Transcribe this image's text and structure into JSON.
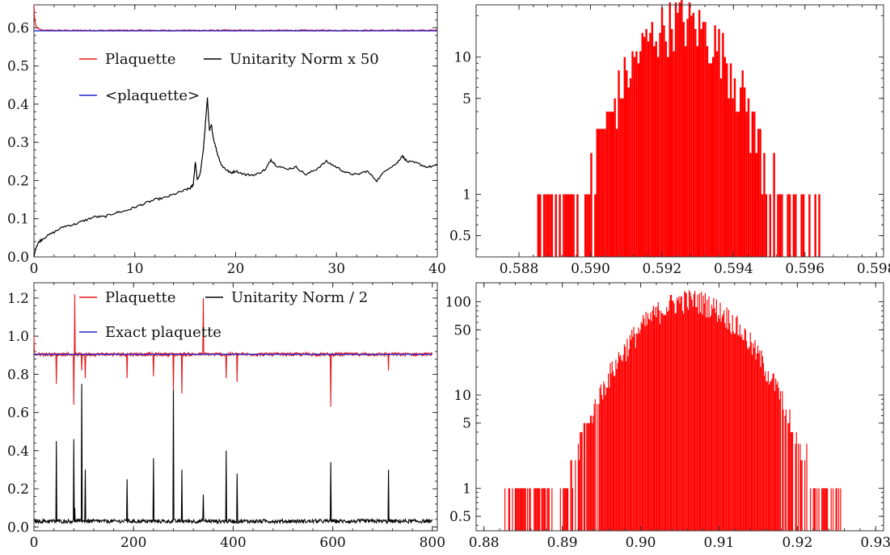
{
  "chart_data": [
    {
      "type": "line",
      "xlim": [
        0,
        40
      ],
      "ylim": [
        0,
        0.66
      ],
      "x_ticks": [
        "0",
        "10",
        "20",
        "30",
        "40"
      ],
      "x_tick_values": [
        0,
        10,
        20,
        30,
        40
      ],
      "y_ticks": [
        "0.0",
        "0.1",
        "0.2",
        "0.3",
        "0.4",
        "0.5",
        "0.6"
      ],
      "y_tick_values": [
        0,
        0.1,
        0.2,
        0.3,
        0.4,
        0.5,
        0.6
      ],
      "legend": [
        {
          "label": "Plaquette",
          "color": "#e8191b"
        },
        {
          "label": "Unitarity Norm x 50",
          "color": "#000000"
        },
        {
          "label": "<plaquette>",
          "color": "#2222cc"
        }
      ],
      "series": [
        {
          "name": "Plaquette",
          "color": "#e8191b",
          "x": [
            0,
            0.05,
            0.15,
            0.3,
            0.6,
            1.0,
            2,
            5,
            10,
            15,
            20,
            25,
            30,
            35,
            40
          ],
          "y": [
            0.66,
            0.63,
            0.61,
            0.6,
            0.596,
            0.594,
            0.593,
            0.593,
            0.592,
            0.593,
            0.592,
            0.593,
            0.592,
            0.593,
            0.592
          ]
        },
        {
          "name": "<plaquette>",
          "color": "#2222cc",
          "x": [
            0,
            40
          ],
          "y": [
            0.592,
            0.592
          ]
        },
        {
          "name": "Unitarity Norm x 50",
          "color": "#000000",
          "x": [
            0,
            0.2,
            0.5,
            1,
            2,
            3,
            4,
            5,
            6,
            7,
            8,
            9,
            10,
            11,
            12,
            13,
            14,
            15,
            15.5,
            15.8,
            16.0,
            16.2,
            16.5,
            16.8,
            17.0,
            17.2,
            17.4,
            17.6,
            17.8,
            18.2,
            18.6,
            19,
            19.5,
            20,
            21,
            22,
            23,
            23.5,
            24,
            25,
            26,
            27,
            28,
            29,
            30,
            31,
            32,
            33,
            34,
            35,
            36,
            36.5,
            37,
            38,
            39,
            40
          ],
          "y": [
            0.0,
            0.025,
            0.04,
            0.05,
            0.065,
            0.08,
            0.085,
            0.095,
            0.105,
            0.105,
            0.115,
            0.12,
            0.13,
            0.14,
            0.15,
            0.155,
            0.165,
            0.175,
            0.18,
            0.19,
            0.25,
            0.2,
            0.22,
            0.28,
            0.35,
            0.415,
            0.33,
            0.345,
            0.31,
            0.27,
            0.24,
            0.23,
            0.22,
            0.225,
            0.215,
            0.215,
            0.23,
            0.255,
            0.24,
            0.23,
            0.235,
            0.215,
            0.23,
            0.25,
            0.235,
            0.22,
            0.215,
            0.225,
            0.2,
            0.23,
            0.245,
            0.265,
            0.25,
            0.245,
            0.235,
            0.24
          ]
        }
      ]
    },
    {
      "type": "bar",
      "scale": "log",
      "xlim": [
        0.5868,
        0.5982
      ],
      "ylim": [
        0.35,
        24
      ],
      "x_ticks": [
        "0.588",
        "0.590",
        "0.592",
        "0.594",
        "0.596",
        "0.598"
      ],
      "x_tick_values": [
        0.588,
        0.59,
        0.592,
        0.594,
        0.596,
        0.598
      ],
      "y_ticks": [
        "0.5",
        "1",
        "5",
        "10"
      ],
      "y_tick_values": [
        0.5,
        1,
        5,
        10
      ],
      "bin_width": 5.5e-05,
      "mean": 0.5925,
      "sigma": 0.0011,
      "peak": 19,
      "x_range": [
        0.5884,
        0.5964
      ],
      "color": "#ff0000"
    },
    {
      "type": "line",
      "xlim": [
        0,
        810
      ],
      "ylim": [
        -0.02,
        1.28
      ],
      "x_ticks": [
        "0",
        "200",
        "400",
        "600",
        "800"
      ],
      "x_tick_values": [
        0,
        200,
        400,
        600,
        800
      ],
      "y_ticks": [
        "0.0",
        "0.2",
        "0.4",
        "0.6",
        "0.8",
        "1.0",
        "1.2"
      ],
      "y_tick_values": [
        0,
        0.2,
        0.4,
        0.6,
        0.8,
        1.0,
        1.2
      ],
      "legend": [
        {
          "label": "Plaquette",
          "color": "#e8191b"
        },
        {
          "label": "Unitarity Norm / 2",
          "color": "#000000"
        },
        {
          "label": "Exact plaquette",
          "color": "#2222cc"
        }
      ],
      "baseline_plaquette": 0.905,
      "exact_plaquette": 0.905,
      "baseline_norm": 0.03,
      "spikes": [
        {
          "x": 45,
          "norm": 0.45,
          "plaq": 0.75
        },
        {
          "x": 80,
          "norm": 0.46,
          "plaq": 0.64
        },
        {
          "x": 82,
          "norm": 0.1,
          "plaq": 1.22
        },
        {
          "x": 96,
          "norm": 0.75,
          "plaq": 0.82
        },
        {
          "x": 103,
          "norm": 0.3,
          "plaq": 0.78
        },
        {
          "x": 187,
          "norm": 0.25,
          "plaq": 0.78
        },
        {
          "x": 240,
          "norm": 0.36,
          "plaq": 0.79
        },
        {
          "x": 280,
          "norm": 0.72,
          "plaq": 0.72
        },
        {
          "x": 297,
          "norm": 0.3,
          "plaq": 0.7
        },
        {
          "x": 340,
          "norm": 0.17,
          "plaq": 1.2
        },
        {
          "x": 386,
          "norm": 0.4,
          "plaq": 0.78
        },
        {
          "x": 408,
          "norm": 0.28,
          "plaq": 0.76
        },
        {
          "x": 596,
          "norm": 0.34,
          "plaq": 0.63
        },
        {
          "x": 712,
          "norm": 0.3,
          "plaq": 0.82
        }
      ]
    },
    {
      "type": "bar",
      "scale": "log",
      "xlim": [
        0.879,
        0.931
      ],
      "ylim": [
        0.35,
        160
      ],
      "x_ticks": [
        "0.88",
        "0.89",
        "0.90",
        "0.91",
        "0.92",
        "0.93"
      ],
      "x_tick_values": [
        0.88,
        0.89,
        0.9,
        0.91,
        0.92,
        0.93
      ],
      "y_ticks": [
        "0.5",
        "1",
        "5",
        "10",
        "50",
        "100"
      ],
      "y_tick_values": [
        0.5,
        1,
        5,
        10,
        50,
        100
      ],
      "bin_width": 0.00012,
      "mean": 0.9062,
      "sigma": 0.0053,
      "peak": 105,
      "x_range": [
        0.8825,
        0.9255
      ],
      "color": "#ff0000"
    }
  ]
}
